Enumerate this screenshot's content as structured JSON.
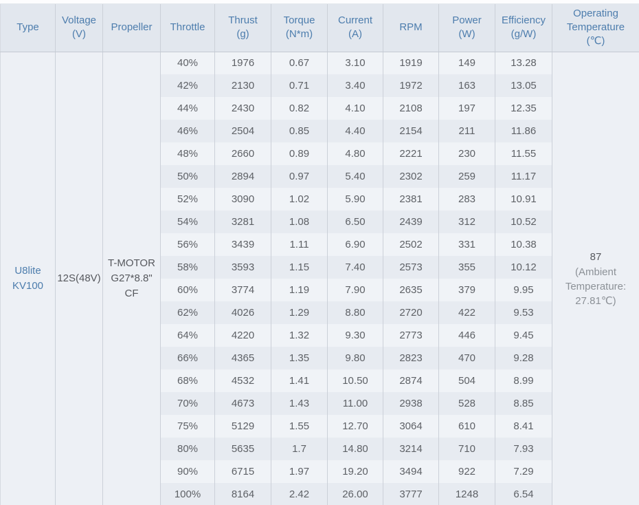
{
  "table": {
    "columns": [
      {
        "key": "type",
        "label": "Type"
      },
      {
        "key": "voltage",
        "label": "Voltage\n(V)"
      },
      {
        "key": "propeller",
        "label": "Propeller"
      },
      {
        "key": "throttle",
        "label": "Throttle"
      },
      {
        "key": "thrust",
        "label": "Thrust\n(g)"
      },
      {
        "key": "torque",
        "label": "Torque\n(N*m)"
      },
      {
        "key": "current",
        "label": "Current\n(A)"
      },
      {
        "key": "rpm",
        "label": "RPM"
      },
      {
        "key": "power",
        "label": "Power\n(W)"
      },
      {
        "key": "efficiency",
        "label": "Efficiency\n(g/W)"
      },
      {
        "key": "operating_temperature",
        "label": "Operating\nTemperature\n(℃)"
      }
    ],
    "merged": {
      "type": "U8lite KV100",
      "voltage": "12S(48V)",
      "propeller": "T-MOTOR G27*8.8\" CF",
      "operating_temperature": {
        "value": "87",
        "note": "(Ambient Temperature: 27.81℃)"
      }
    },
    "row_keys": [
      "throttle",
      "thrust",
      "torque",
      "current",
      "rpm",
      "power",
      "efficiency"
    ],
    "rows": [
      {
        "throttle": "40%",
        "thrust": "1976",
        "torque": "0.67",
        "current": "3.10",
        "rpm": "1919",
        "power": "149",
        "efficiency": "13.28"
      },
      {
        "throttle": "42%",
        "thrust": "2130",
        "torque": "0.71",
        "current": "3.40",
        "rpm": "1972",
        "power": "163",
        "efficiency": "13.05"
      },
      {
        "throttle": "44%",
        "thrust": "2430",
        "torque": "0.82",
        "current": "4.10",
        "rpm": "2108",
        "power": "197",
        "efficiency": "12.35"
      },
      {
        "throttle": "46%",
        "thrust": "2504",
        "torque": "0.85",
        "current": "4.40",
        "rpm": "2154",
        "power": "211",
        "efficiency": "11.86"
      },
      {
        "throttle": "48%",
        "thrust": "2660",
        "torque": "0.89",
        "current": "4.80",
        "rpm": "2221",
        "power": "230",
        "efficiency": "11.55"
      },
      {
        "throttle": "50%",
        "thrust": "2894",
        "torque": "0.97",
        "current": "5.40",
        "rpm": "2302",
        "power": "259",
        "efficiency": "11.17"
      },
      {
        "throttle": "52%",
        "thrust": "3090",
        "torque": "1.02",
        "current": "5.90",
        "rpm": "2381",
        "power": "283",
        "efficiency": "10.91"
      },
      {
        "throttle": "54%",
        "thrust": "3281",
        "torque": "1.08",
        "current": "6.50",
        "rpm": "2439",
        "power": "312",
        "efficiency": "10.52"
      },
      {
        "throttle": "56%",
        "thrust": "3439",
        "torque": "1.11",
        "current": "6.90",
        "rpm": "2502",
        "power": "331",
        "efficiency": "10.38"
      },
      {
        "throttle": "58%",
        "thrust": "3593",
        "torque": "1.15",
        "current": "7.40",
        "rpm": "2573",
        "power": "355",
        "efficiency": "10.12"
      },
      {
        "throttle": "60%",
        "thrust": "3774",
        "torque": "1.19",
        "current": "7.90",
        "rpm": "2635",
        "power": "379",
        "efficiency": "9.95"
      },
      {
        "throttle": "62%",
        "thrust": "4026",
        "torque": "1.29",
        "current": "8.80",
        "rpm": "2720",
        "power": "422",
        "efficiency": "9.53"
      },
      {
        "throttle": "64%",
        "thrust": "4220",
        "torque": "1.32",
        "current": "9.30",
        "rpm": "2773",
        "power": "446",
        "efficiency": "9.45"
      },
      {
        "throttle": "66%",
        "thrust": "4365",
        "torque": "1.35",
        "current": "9.80",
        "rpm": "2823",
        "power": "470",
        "efficiency": "9.28"
      },
      {
        "throttle": "68%",
        "thrust": "4532",
        "torque": "1.41",
        "current": "10.50",
        "rpm": "2874",
        "power": "504",
        "efficiency": "8.99"
      },
      {
        "throttle": "70%",
        "thrust": "4673",
        "torque": "1.43",
        "current": "11.00",
        "rpm": "2938",
        "power": "528",
        "efficiency": "8.85"
      },
      {
        "throttle": "75%",
        "thrust": "5129",
        "torque": "1.55",
        "current": "12.70",
        "rpm": "3064",
        "power": "610",
        "efficiency": "8.41"
      },
      {
        "throttle": "80%",
        "thrust": "5635",
        "torque": "1.7",
        "current": "14.80",
        "rpm": "3214",
        "power": "710",
        "efficiency": "7.93"
      },
      {
        "throttle": "90%",
        "thrust": "6715",
        "torque": "1.97",
        "current": "19.20",
        "rpm": "3494",
        "power": "922",
        "efficiency": "7.29"
      },
      {
        "throttle": "100%",
        "thrust": "8164",
        "torque": "2.42",
        "current": "26.00",
        "rpm": "3777",
        "power": "1248",
        "efficiency": "6.54"
      }
    ]
  },
  "colors": {
    "header_background": "#e2e7ee",
    "header_text": "#4d7dad",
    "row_odd": "#f0f3f7",
    "row_even": "#e7ebf1",
    "merged_cell_background": "#edf0f5",
    "data_text": "#5e6166",
    "note_text": "#8c9197",
    "border": "#cbd0d8"
  }
}
